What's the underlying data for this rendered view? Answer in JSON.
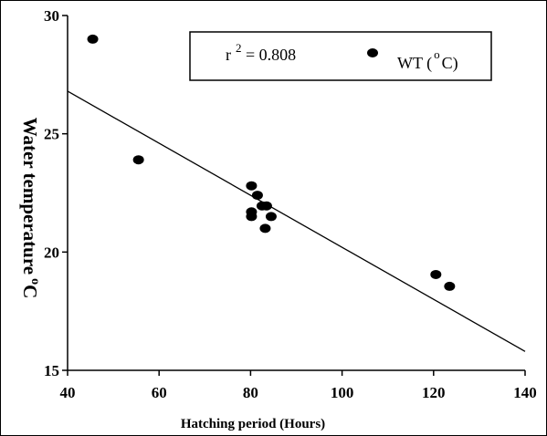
{
  "chart_data": {
    "type": "scatter",
    "xlabel": "Hatching period (Hours)",
    "ylabel": "Water temperature",
    "ylabel_superscript": "o",
    "ylabel_unit": "C",
    "xlim": [
      40,
      140
    ],
    "ylim": [
      15,
      30
    ],
    "xticks": [
      "40",
      "60",
      "80",
      "100",
      "120",
      "140"
    ],
    "yticks": [
      "15",
      "20",
      "25",
      "30"
    ],
    "grid": false,
    "legend_position": "top-right",
    "series": [
      {
        "name": "WT (oC)",
        "name_base": "WT (",
        "name_sup": "o",
        "name_tail": "C)",
        "color": "#000000",
        "points": [
          {
            "x": 45.5,
            "y": 29.0
          },
          {
            "x": 55.5,
            "y": 23.9
          },
          {
            "x": 80.2,
            "y": 22.8
          },
          {
            "x": 81.5,
            "y": 22.4
          },
          {
            "x": 82.5,
            "y": 21.95
          },
          {
            "x": 83.5,
            "y": 21.95
          },
          {
            "x": 80.2,
            "y": 21.7
          },
          {
            "x": 80.2,
            "y": 21.5
          },
          {
            "x": 84.5,
            "y": 21.5
          },
          {
            "x": 83.2,
            "y": 21.0
          },
          {
            "x": 120.5,
            "y": 19.05
          },
          {
            "x": 123.5,
            "y": 18.55
          }
        ]
      }
    ],
    "trendline": {
      "x": [
        40,
        140
      ],
      "y": [
        26.8,
        15.8
      ],
      "color": "#000000"
    },
    "annotation": {
      "r_label": "r",
      "r_sup": "2",
      "r_value": " = 0.808"
    }
  }
}
